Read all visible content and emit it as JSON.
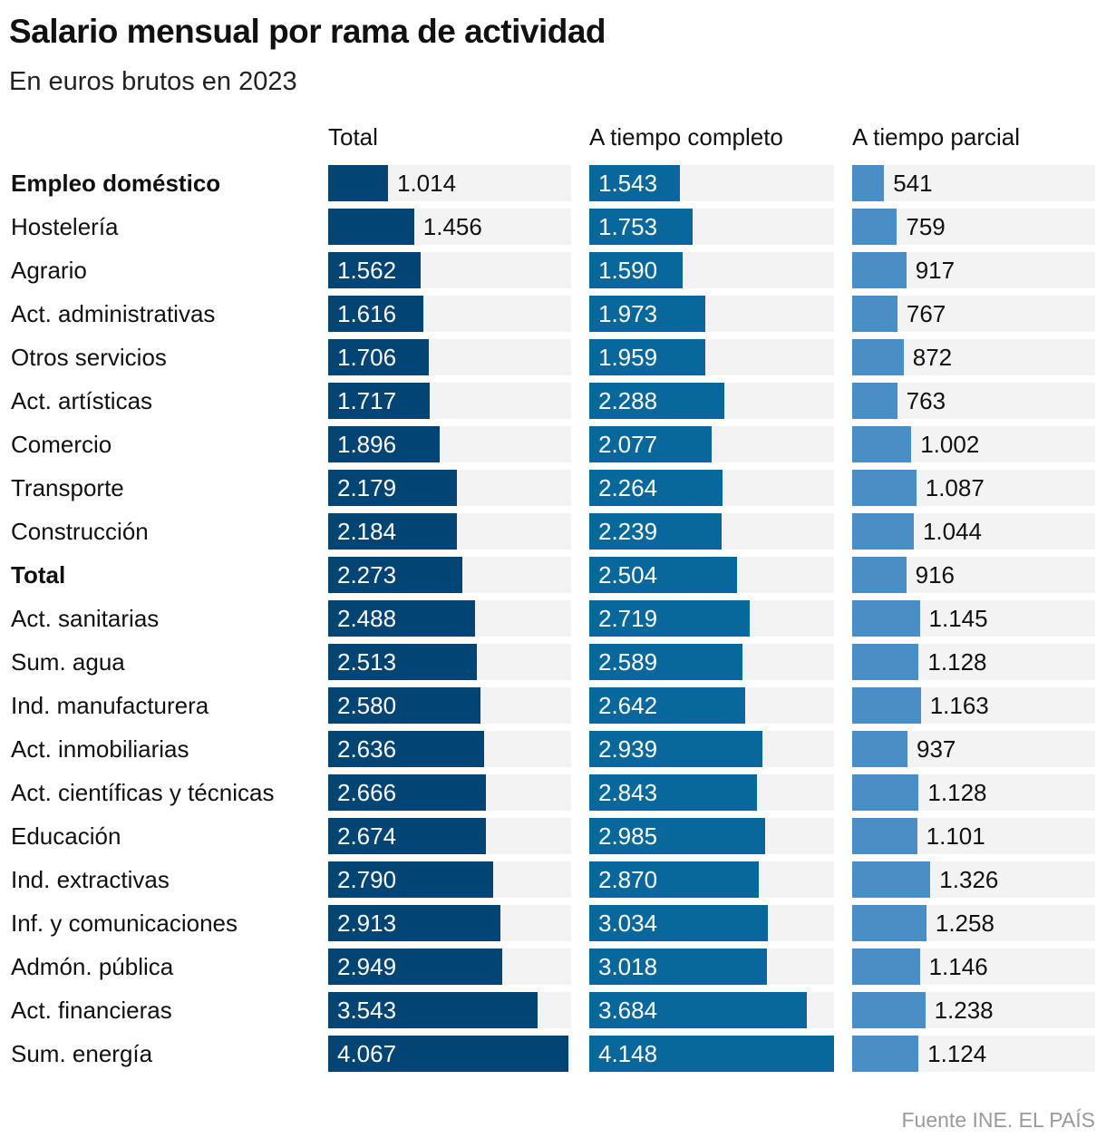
{
  "title": "Salario mensual por rama de actividad",
  "subtitle": "En euros brutos en 2023",
  "source": "Fuente INE. EL PAÍS",
  "chart_data": {
    "type": "bar",
    "orientation": "horizontal",
    "title": "Salario mensual por rama de actividad",
    "subtitle": "En euros brutos en 2023",
    "categories": [
      "Empleo doméstico",
      "Hostelería",
      "Agrario",
      "Act. administrativas",
      "Otros servicios",
      "Act. artísticas",
      "Comercio",
      "Transporte",
      "Construcción",
      "Total",
      "Act. sanitarias",
      "Sum. agua",
      "Ind. manufacturera",
      "Act. inmobiliarias",
      "Act. científicas y técnicas",
      "Educación",
      "Ind. extractivas",
      "Inf. y comunicaciones",
      "Admón. pública",
      "Act. financieras",
      "Sum. energía"
    ],
    "bold_categories": [
      "Empleo doméstico",
      "Total"
    ],
    "series": [
      {
        "name": "Total",
        "color": "#024474",
        "values": [
          1014,
          1456,
          1562,
          1616,
          1706,
          1717,
          1896,
          2179,
          2184,
          2273,
          2488,
          2513,
          2580,
          2636,
          2666,
          2674,
          2790,
          2913,
          2949,
          3543,
          4067
        ],
        "labels": [
          "1.014",
          "1.456",
          "1.562",
          "1.616",
          "1.706",
          "1.717",
          "1.896",
          "2.179",
          "2.184",
          "2.273",
          "2.488",
          "2.513",
          "2.580",
          "2.636",
          "2.666",
          "2.674",
          "2.790",
          "2.913",
          "2.949",
          "3.543",
          "4.067"
        ]
      },
      {
        "name": "A tiempo completo",
        "color": "#08689c",
        "values": [
          1543,
          1753,
          1590,
          1973,
          1959,
          2288,
          2077,
          2264,
          2239,
          2504,
          2719,
          2589,
          2642,
          2939,
          2843,
          2985,
          2870,
          3034,
          3018,
          3684,
          4148
        ],
        "labels": [
          "1.543",
          "1.753",
          "1.590",
          "1.973",
          "1.959",
          "2.288",
          "2.077",
          "2.264",
          "2.239",
          "2.504",
          "2.719",
          "2.589",
          "2.642",
          "2.939",
          "2.843",
          "2.985",
          "2.870",
          "3.034",
          "3.018",
          "3.684",
          "4.148"
        ]
      },
      {
        "name": "A tiempo parcial",
        "color": "#4a8ec5",
        "values": [
          541,
          759,
          917,
          767,
          872,
          763,
          1002,
          1087,
          1044,
          916,
          1145,
          1128,
          1163,
          937,
          1128,
          1101,
          1326,
          1258,
          1146,
          1238,
          1124
        ],
        "labels": [
          "541",
          "759",
          "917",
          "767",
          "872",
          "763",
          "1.002",
          "1.087",
          "1.044",
          "916",
          "1.145",
          "1.128",
          "1.163",
          "937",
          "1.128",
          "1.101",
          "1.326",
          "1.258",
          "1.146",
          "1.238",
          "1.124"
        ]
      }
    ],
    "xlim": [
      0,
      4148
    ],
    "track_color": "#f3f3f3",
    "grid": false,
    "legend": "none"
  }
}
